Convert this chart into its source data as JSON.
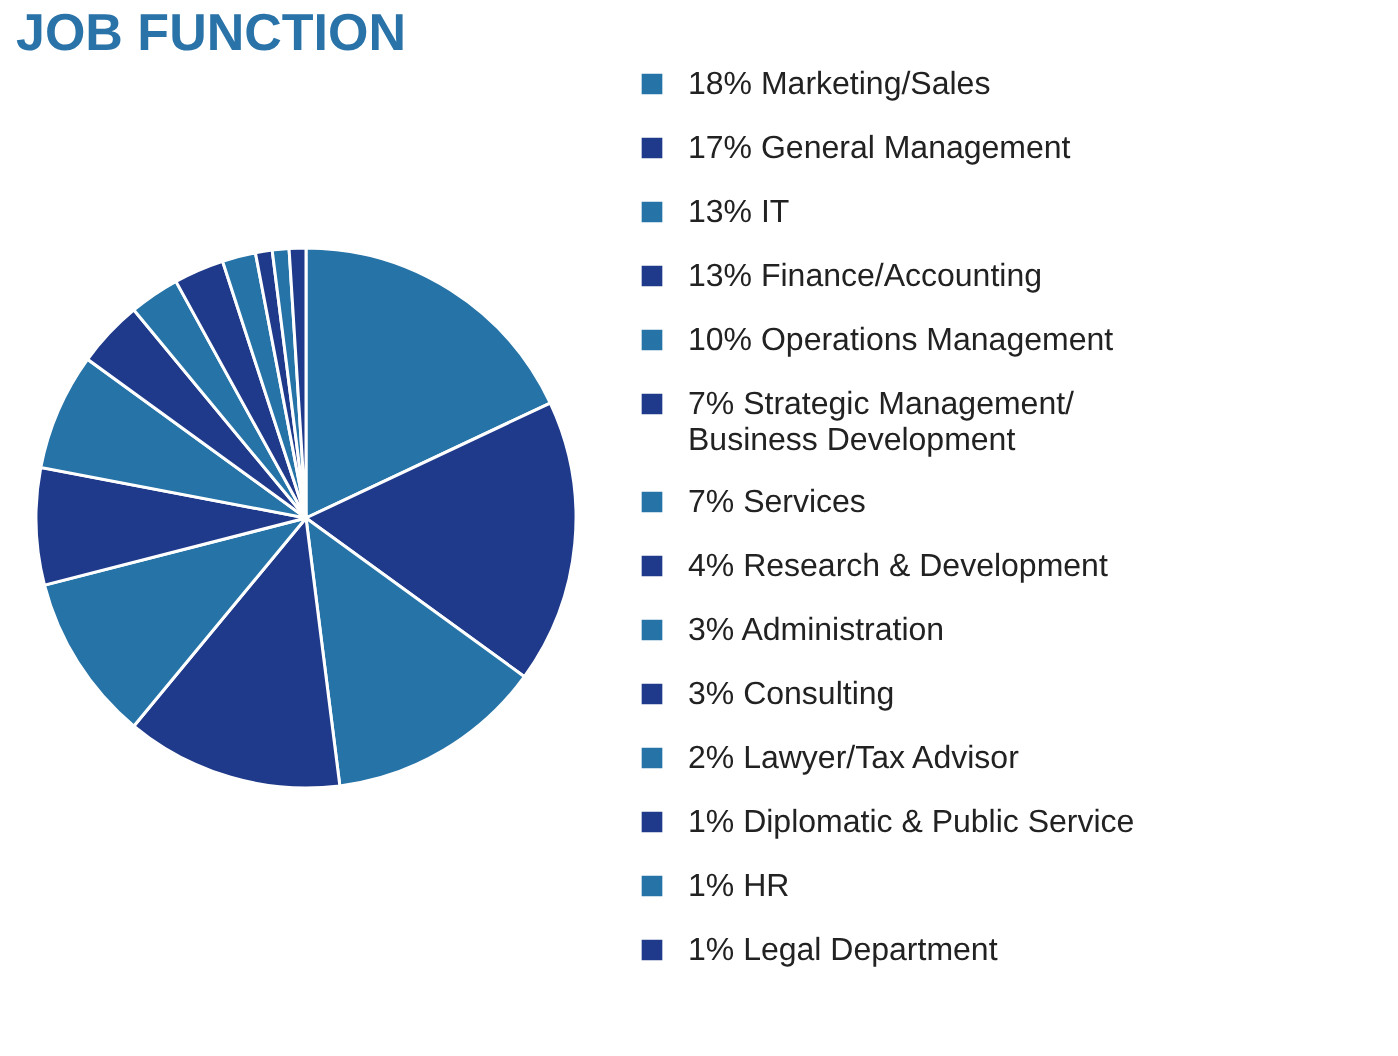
{
  "chart_data": {
    "type": "pie",
    "title": "JOB FUNCTION",
    "categories": [
      "Marketing/Sales",
      "General Management",
      "IT",
      "Finance/Accounting",
      "Operations Management",
      "Strategic Management/ Business Development",
      "Services",
      "Research & Development",
      "Administration",
      "Consulting",
      "Lawyer/Tax Advisor",
      "Diplomatic & Public Service",
      "HR",
      "Legal Department"
    ],
    "values": [
      18,
      17,
      13,
      13,
      10,
      7,
      7,
      4,
      3,
      3,
      2,
      1,
      1,
      1
    ],
    "value_labels": [
      "18%",
      "17%",
      "13%",
      "13%",
      "10%",
      "7%",
      "7%",
      "4%",
      "3%",
      "3%",
      "2%",
      "1%",
      "1%",
      "1%"
    ],
    "legend": "right",
    "colors": [
      "#2573a7",
      "#1f3a8a",
      "#2573a7",
      "#1f3a8a",
      "#2573a7",
      "#1f3a8a",
      "#2573a7",
      "#1f3a8a",
      "#2573a7",
      "#1f3a8a",
      "#2573a7",
      "#1f3a8a",
      "#2573a7",
      "#1f3a8a"
    ]
  }
}
